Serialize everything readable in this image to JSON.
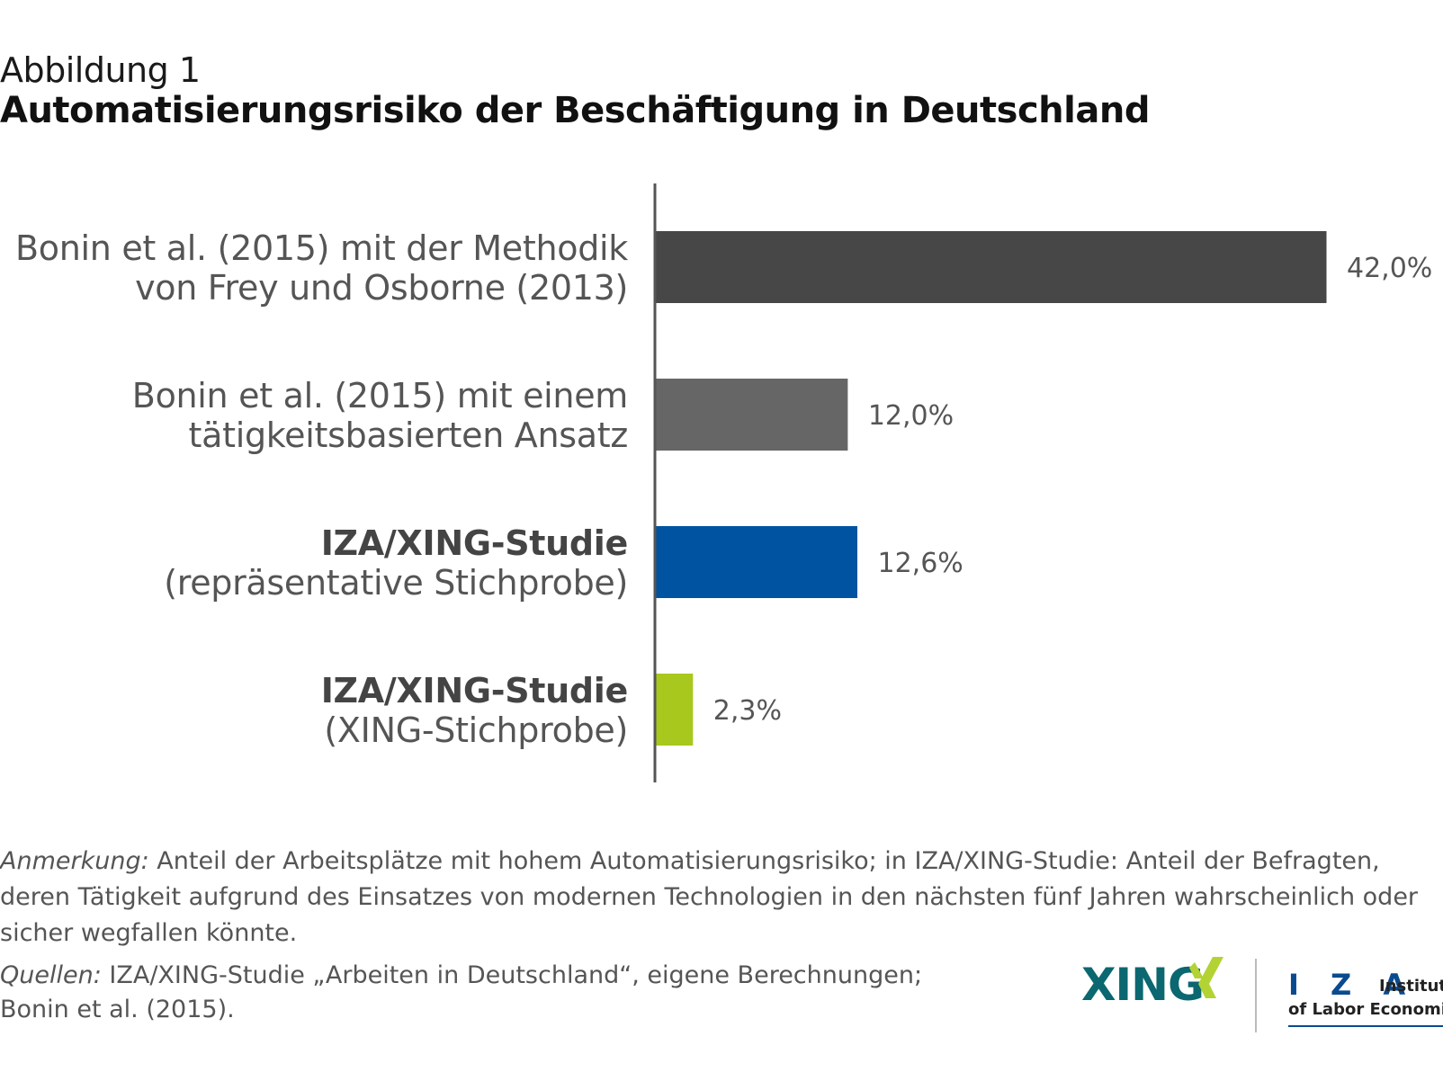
{
  "figure": {
    "label": "Abbildung 1",
    "title": "Automatisierungsrisiko der Beschäftigung in Deutschland"
  },
  "chart_data": {
    "type": "bar",
    "orientation": "horizontal",
    "categories": [
      {
        "line1": "Bonin et al. (2015) mit der Methodik",
        "line2": "von Frey und Osborne (2013)",
        "bold": false
      },
      {
        "line1": "Bonin et al. (2015) mit einem",
        "line2": "tätigkeitsbasierten Ansatz",
        "bold": false
      },
      {
        "line1": "IZA/XING-Studie",
        "line2": "(repräsentative Stichprobe)",
        "bold": true
      },
      {
        "line1": "IZA/XING-Studie",
        "line2": "(XING-Stichprobe)",
        "bold": true
      }
    ],
    "values": [
      42.0,
      12.0,
      12.6,
      2.3
    ],
    "value_labels": [
      "42,0%",
      "12,0%",
      "12,6%",
      "2,3%"
    ],
    "colors": [
      "#474747",
      "#666666",
      "#0053a0",
      "#a8c81e"
    ],
    "xlim": [
      0,
      42.0
    ],
    "grid": false,
    "legend": "none"
  },
  "note": {
    "label": "Anmerkung:",
    "text": " Anteil der Arbeitsplätze mit hohem Automatisierungsrisiko; in IZA/XING-Studie: Anteil der Befragten, deren Tätigkeit aufgrund des Einsatzes von modernen Technologien in den nächsten fünf Jahren wahrscheinlich oder sicher wegfallen könnte."
  },
  "sources": {
    "label": "Quellen:",
    "line1": " IZA/XING-Studie „Arbeiten in Deutschland“, eigene Berechnungen;",
    "line2": "Bonin et al. (2015)."
  },
  "logos": {
    "xing": "XING",
    "iza": "I Z A",
    "iza_sub1": "Institute",
    "iza_sub2": "of Labor Economics",
    "colors": {
      "xing_teal": "#0b6770",
      "xing_green": "#b3d334",
      "iza_blue": "#0a4a8f"
    }
  }
}
